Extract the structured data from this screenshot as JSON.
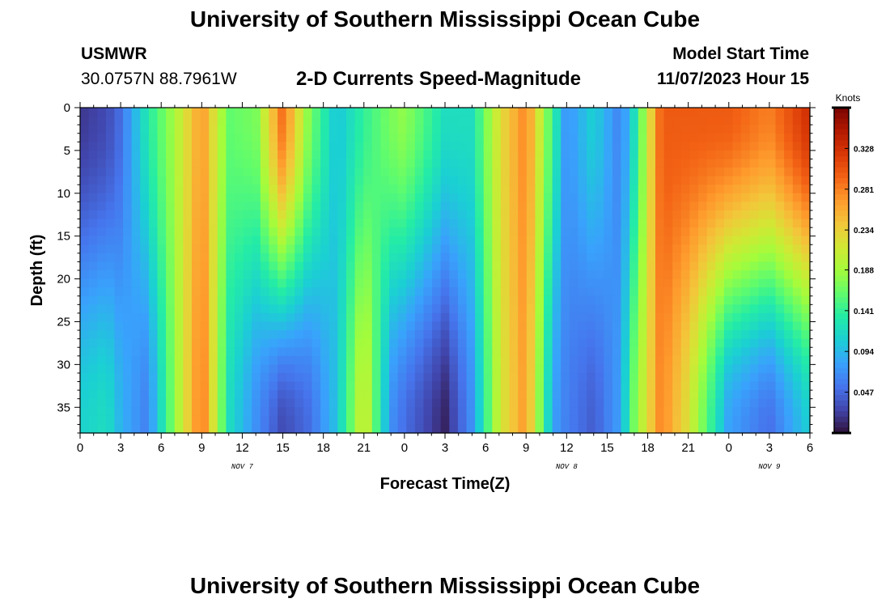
{
  "header": {
    "title": "University of Southern Mississippi Ocean Cube",
    "station": "USMWR",
    "coords": "30.0757N  88.7961W",
    "subtitle": "2-D Currents Speed-Magnitude",
    "model_start_label": "Model Start Time",
    "model_start_value": "11/07/2023 Hour 15"
  },
  "footer": {
    "title": "University of Southern Mississippi Ocean Cube"
  },
  "chart_data": {
    "type": "heatmap",
    "title": "2-D Currents Speed-Magnitude",
    "xlabel": "Forecast Time(Z)",
    "ylabel": "Depth (ft)",
    "x_range_hours": [
      0,
      54
    ],
    "x_ticks": [
      "0",
      "3",
      "6",
      "9",
      "12",
      "15",
      "18",
      "21",
      "0",
      "3",
      "6",
      "9",
      "12",
      "15",
      "18",
      "21",
      "0",
      "3",
      "6"
    ],
    "day_labels": [
      {
        "label": "NOV 7",
        "hour": 12
      },
      {
        "label": "NOV 8",
        "hour": 36
      },
      {
        "label": "NOV 9",
        "hour": 51
      }
    ],
    "y_range_ft": [
      0,
      38
    ],
    "y_ticks": [
      0,
      5,
      10,
      15,
      20,
      25,
      30,
      35
    ],
    "y_inverted": true,
    "colorbar": {
      "unit": "Knots",
      "ticks": [
        0.047,
        0.094,
        0.141,
        0.188,
        0.234,
        0.281,
        0.328
      ],
      "min": 0.0,
      "max": 0.375,
      "colors": [
        "#30123b",
        "#4145ab",
        "#4675ed",
        "#39a2fc",
        "#1bcfd4",
        "#24eca6",
        "#61fc6c",
        "#a4fc3b",
        "#d1e834",
        "#f3c63a",
        "#fe9b2d",
        "#f36315",
        "#d93806",
        "#b11901",
        "#7a0402"
      ]
    },
    "speed_profile_knots": [
      {
        "hour": 0,
        "surface": 0.02,
        "bottom": 0.11
      },
      {
        "hour": 2,
        "surface": 0.03,
        "bottom": 0.12
      },
      {
        "hour": 3,
        "surface": 0.05,
        "bottom": 0.09
      },
      {
        "hour": 5,
        "surface": 0.13,
        "bottom": 0.06
      },
      {
        "hour": 7,
        "surface": 0.19,
        "bottom": 0.18
      },
      {
        "hour": 9,
        "surface": 0.27,
        "bottom": 0.29
      },
      {
        "hour": 11,
        "surface": 0.16,
        "bottom": 0.12
      },
      {
        "hour": 13,
        "surface": 0.17,
        "bottom": 0.07
      },
      {
        "hour": 15,
        "surface": 0.29,
        "bottom": 0.03
      },
      {
        "hour": 17,
        "surface": 0.17,
        "bottom": 0.05
      },
      {
        "hour": 19,
        "surface": 0.1,
        "bottom": 0.1
      },
      {
        "hour": 21,
        "surface": 0.14,
        "bottom": 0.22
      },
      {
        "hour": 23,
        "surface": 0.17,
        "bottom": 0.07
      },
      {
        "hour": 24,
        "surface": 0.18,
        "bottom": 0.05
      },
      {
        "hour": 27,
        "surface": 0.12,
        "bottom": 0.01
      },
      {
        "hour": 29,
        "surface": 0.12,
        "bottom": 0.07
      },
      {
        "hour": 31,
        "surface": 0.22,
        "bottom": 0.21
      },
      {
        "hour": 33,
        "surface": 0.28,
        "bottom": 0.27
      },
      {
        "hour": 35,
        "surface": 0.14,
        "bottom": 0.08
      },
      {
        "hour": 36,
        "surface": 0.07,
        "bottom": 0.06
      },
      {
        "hour": 38,
        "surface": 0.11,
        "bottom": 0.04
      },
      {
        "hour": 40,
        "surface": 0.06,
        "bottom": 0.08
      },
      {
        "hour": 41,
        "surface": 0.12,
        "bottom": 0.17
      },
      {
        "hour": 43,
        "surface": 0.3,
        "bottom": 0.28
      },
      {
        "hour": 45,
        "surface": 0.3,
        "bottom": 0.22
      },
      {
        "hour": 48,
        "surface": 0.3,
        "bottom": 0.08
      },
      {
        "hour": 51,
        "surface": 0.28,
        "bottom": 0.05
      },
      {
        "hour": 54,
        "surface": 0.33,
        "bottom": 0.11
      }
    ]
  }
}
